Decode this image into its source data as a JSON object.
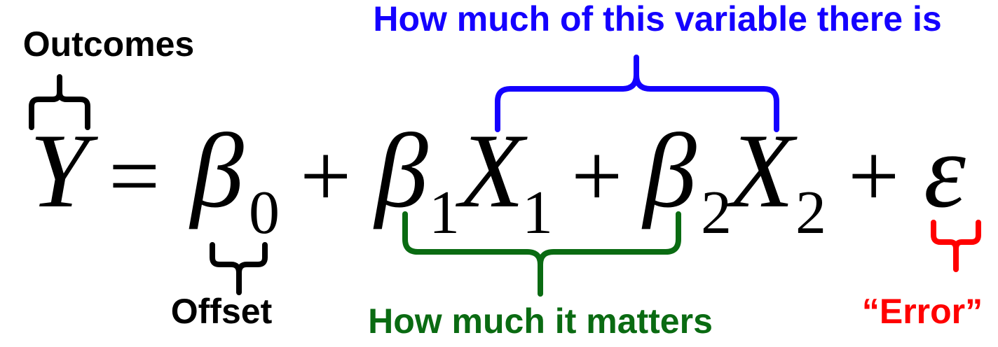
{
  "labels": {
    "outcomes": "Outcomes",
    "variable_amount": "How much of this variable there is",
    "offset": "Offset",
    "importance": "How much it matters",
    "error": "“Error”"
  },
  "equation": {
    "y": "Y",
    "equals": "=",
    "beta": "β",
    "x": "X",
    "plus": "+",
    "epsilon": "ε",
    "sub_0": "0",
    "sub_1": "1",
    "sub_2": "2"
  },
  "colors": {
    "text": "#000000",
    "outcomes_brace": "#000000",
    "variable_brace": "#1400ff",
    "offset_brace": "#000000",
    "importance_brace": "#0a6b12",
    "error_brace": "#ff0000"
  }
}
